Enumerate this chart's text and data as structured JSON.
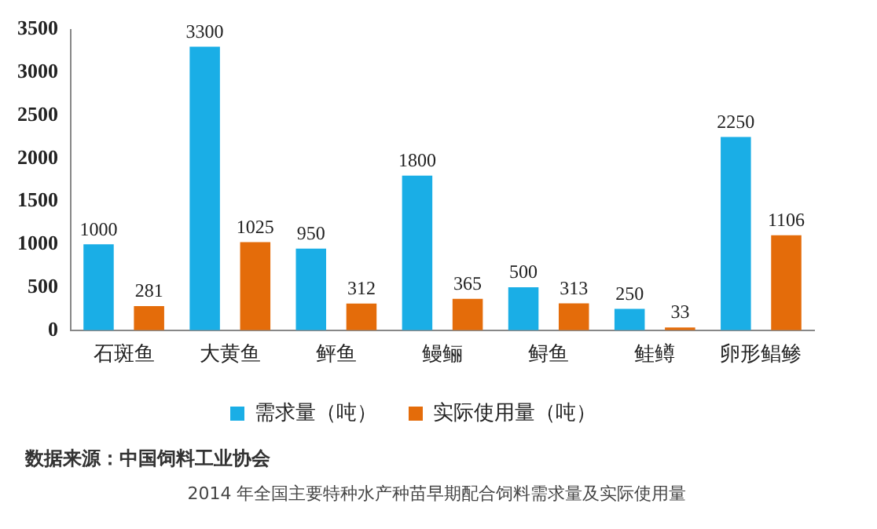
{
  "chart_data": {
    "type": "bar",
    "categories": [
      "石斑鱼",
      "大黄鱼",
      "鲆鱼",
      "鳗鲡",
      "鲟鱼",
      "鲑鳟",
      "卵形鲳鲹"
    ],
    "series": [
      {
        "name": "需求量（吨）",
        "color": "#1aaee6",
        "values": [
          1000,
          3300,
          950,
          1800,
          500,
          250,
          2250
        ]
      },
      {
        "name": "实际使用量（吨）",
        "color": "#e46c0a",
        "values": [
          281,
          1025,
          312,
          365,
          313,
          33,
          1106
        ]
      }
    ],
    "ylim": [
      0,
      3500
    ],
    "yticks": [
      0,
      500,
      1000,
      1500,
      2000,
      2500,
      3000,
      3500
    ],
    "grid": false,
    "legend": "bottom",
    "data_labels": true,
    "annotations": [
      "数据来源：中国饲料工业协会",
      "2014 年全国主要特种水产种苗早期配合饲料需求量及实际使用量"
    ]
  }
}
